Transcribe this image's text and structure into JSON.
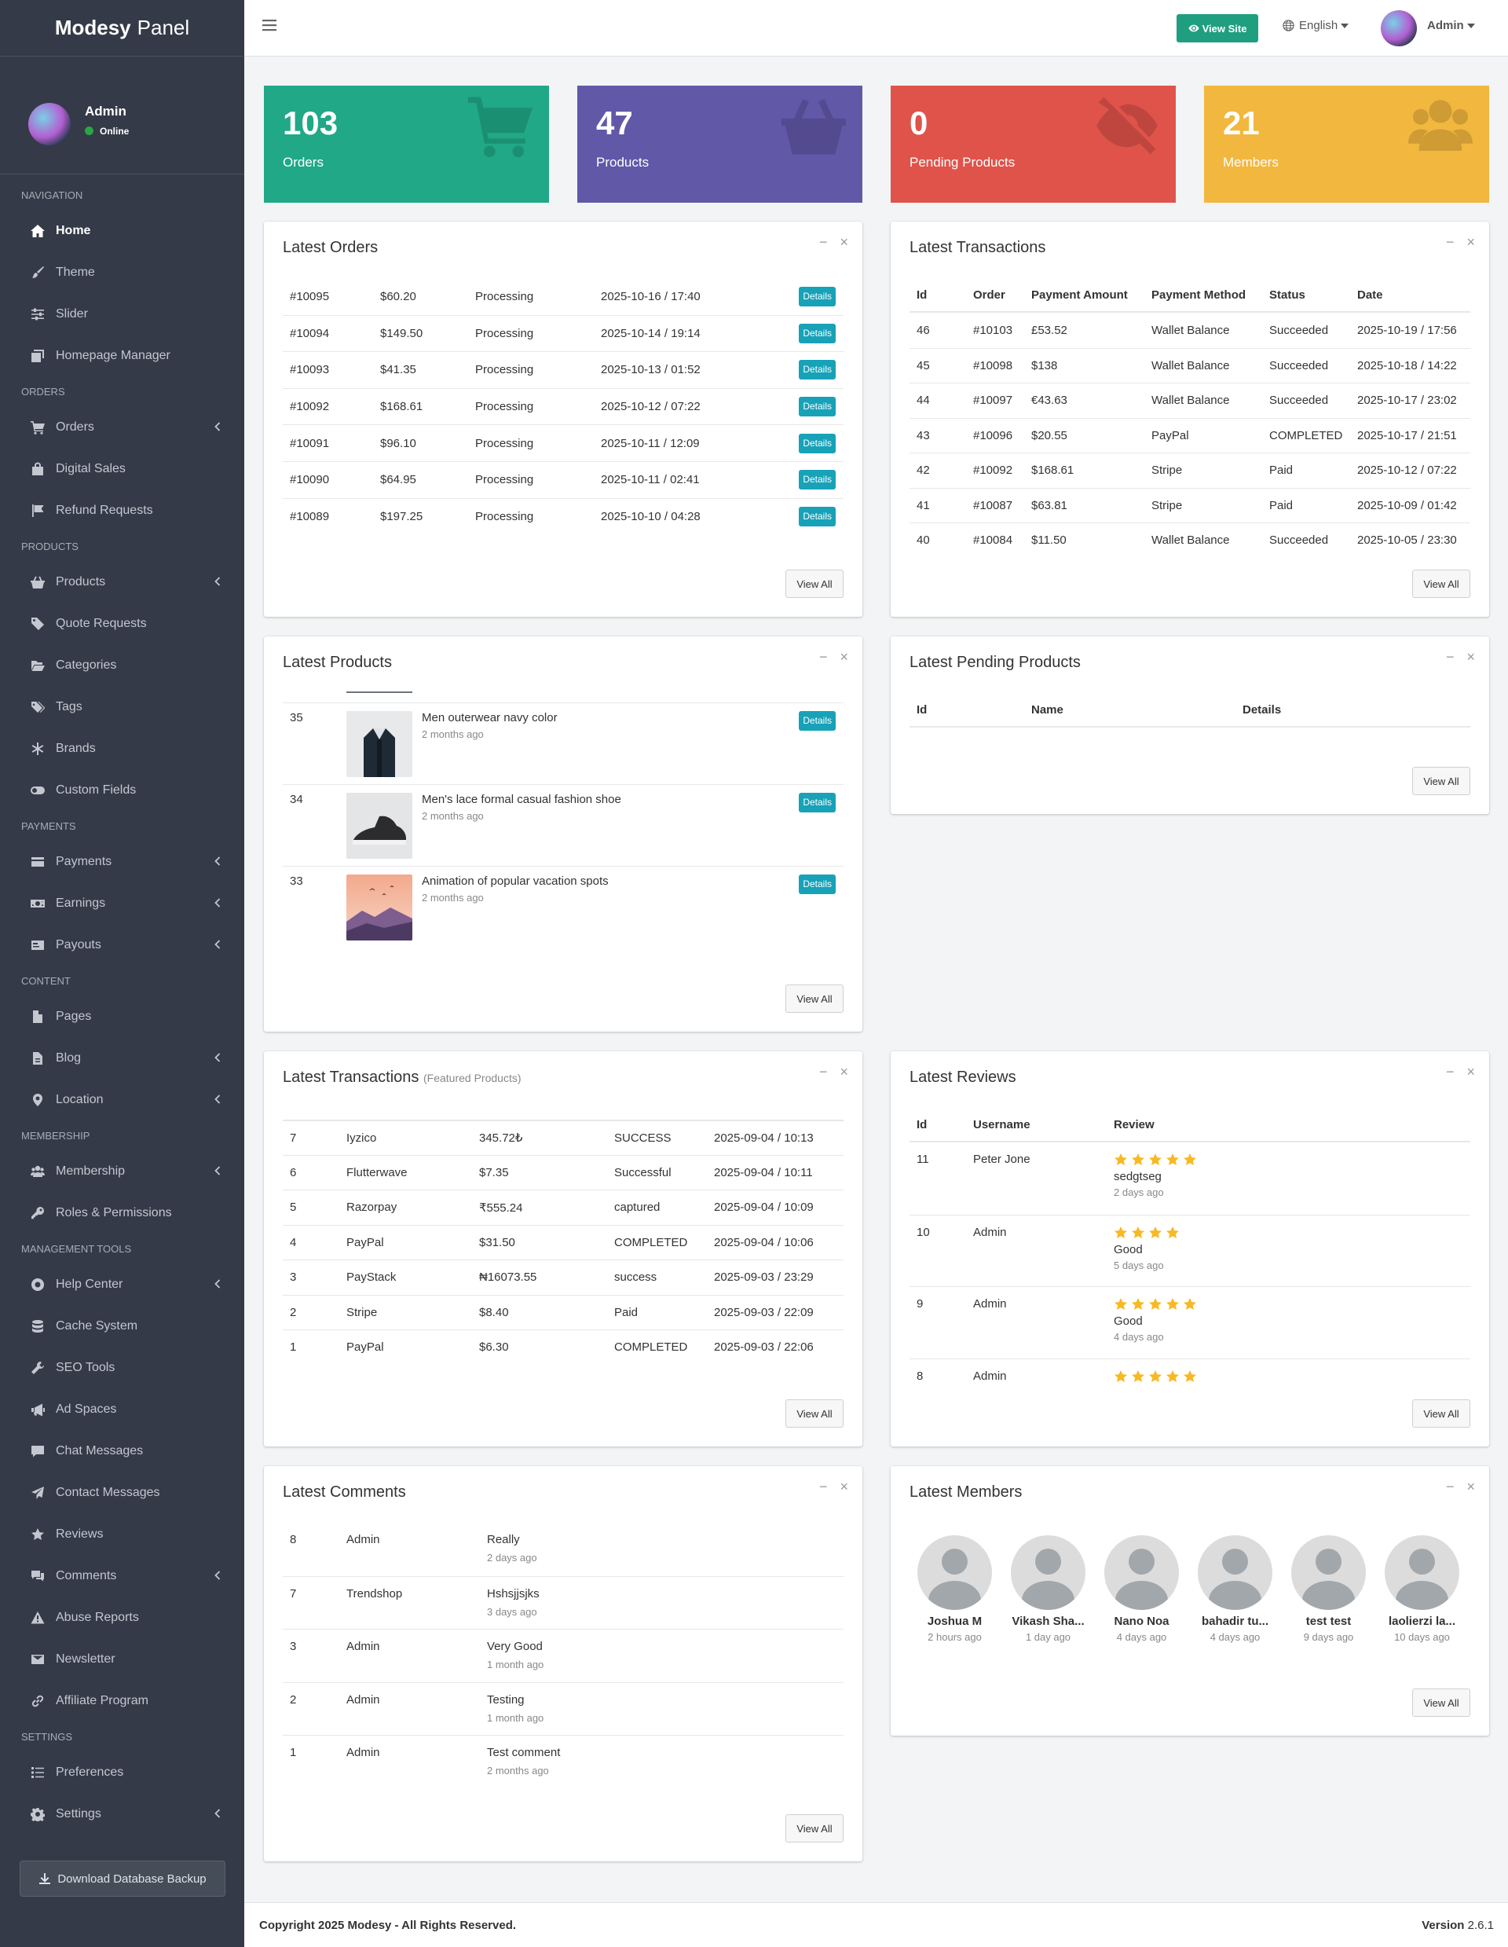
{
  "brand": {
    "bold": "Modesy",
    "light": "Panel"
  },
  "user": {
    "name": "Admin",
    "status": "Online"
  },
  "nav": [
    {
      "type": "header",
      "label": "Navigation"
    },
    {
      "type": "item",
      "label": "Home",
      "icon": "home-icon",
      "active": true
    },
    {
      "type": "item",
      "label": "Theme",
      "icon": "brush-icon"
    },
    {
      "type": "item",
      "label": "Slider",
      "icon": "sliders-icon"
    },
    {
      "type": "item",
      "label": "Homepage Manager",
      "icon": "layers-icon"
    },
    {
      "type": "header",
      "label": "Orders"
    },
    {
      "type": "item",
      "label": "Orders",
      "icon": "cart-icon",
      "chevron": true
    },
    {
      "type": "item",
      "label": "Digital Sales",
      "icon": "shopping-bag-icon"
    },
    {
      "type": "item",
      "label": "Refund Requests",
      "icon": "flag-icon"
    },
    {
      "type": "header",
      "label": "Products"
    },
    {
      "type": "item",
      "label": "Products",
      "icon": "basket-icon",
      "chevron": true
    },
    {
      "type": "item",
      "label": "Quote Requests",
      "icon": "tag-icon"
    },
    {
      "type": "item",
      "label": "Categories",
      "icon": "folder-open-icon"
    },
    {
      "type": "item",
      "label": "Tags",
      "icon": "tags-icon"
    },
    {
      "type": "item",
      "label": "Brands",
      "icon": "asterisk-icon"
    },
    {
      "type": "item",
      "label": "Custom Fields",
      "icon": "toggle-icon"
    },
    {
      "type": "header",
      "label": "Payments"
    },
    {
      "type": "item",
      "label": "Payments",
      "icon": "credit-card-icon",
      "chevron": true
    },
    {
      "type": "item",
      "label": "Earnings",
      "icon": "money-bill-icon",
      "chevron": true
    },
    {
      "type": "item",
      "label": "Payouts",
      "icon": "payout-card-icon",
      "chevron": true
    },
    {
      "type": "header",
      "label": "Content"
    },
    {
      "type": "item",
      "label": "Pages",
      "icon": "file-icon"
    },
    {
      "type": "item",
      "label": "Blog",
      "icon": "file-text-icon",
      "chevron": true
    },
    {
      "type": "item",
      "label": "Location",
      "icon": "map-marker-icon",
      "chevron": true
    },
    {
      "type": "header",
      "label": "Membership"
    },
    {
      "type": "item",
      "label": "Membership",
      "icon": "users-icon",
      "chevron": true
    },
    {
      "type": "item",
      "label": "Roles & Permissions",
      "icon": "key-icon"
    },
    {
      "type": "header",
      "label": "Management Tools"
    },
    {
      "type": "item",
      "label": "Help Center",
      "icon": "lifebuoy-icon",
      "chevron": true
    },
    {
      "type": "item",
      "label": "Cache System",
      "icon": "database-icon"
    },
    {
      "type": "item",
      "label": "SEO Tools",
      "icon": "wrench-icon"
    },
    {
      "type": "item",
      "label": "Ad Spaces",
      "icon": "megaphone-icon"
    },
    {
      "type": "item",
      "label": "Chat Messages",
      "icon": "chat-icon"
    },
    {
      "type": "item",
      "label": "Contact Messages",
      "icon": "paper-plane-icon"
    },
    {
      "type": "item",
      "label": "Reviews",
      "icon": "star-icon"
    },
    {
      "type": "item",
      "label": "Comments",
      "icon": "comments-icon",
      "chevron": true
    },
    {
      "type": "item",
      "label": "Abuse Reports",
      "icon": "warning-icon"
    },
    {
      "type": "item",
      "label": "Newsletter",
      "icon": "envelope-icon"
    },
    {
      "type": "item",
      "label": "Affiliate Program",
      "icon": "link-icon"
    },
    {
      "type": "header",
      "label": "Settings"
    },
    {
      "type": "item",
      "label": "Preferences",
      "icon": "list-icon"
    },
    {
      "type": "item",
      "label": "Settings",
      "icon": "gear-icon",
      "chevron": true
    }
  ],
  "download_backup": "Download Database Backup",
  "topbar": {
    "view_site": "View Site",
    "language": "English",
    "admin": "Admin"
  },
  "stats": [
    {
      "value": "103",
      "label": "Orders",
      "color": "#20a887",
      "icon": "cart-icon"
    },
    {
      "value": "47",
      "label": "Products",
      "color": "#6258a8",
      "icon": "basket-icon"
    },
    {
      "value": "0",
      "label": "Pending Products",
      "color": "#e0534a",
      "icon": "eye-slash-icon"
    },
    {
      "value": "21",
      "label": "Members",
      "color": "#f2b73e",
      "icon": "users-icon"
    }
  ],
  "common": {
    "view_all": "View All",
    "details": "Details"
  },
  "latest_orders": {
    "title": "Latest Orders",
    "rows": [
      [
        "#10095",
        "$60.20",
        "Processing",
        "2025-10-16 / 17:40"
      ],
      [
        "#10094",
        "$149.50",
        "Processing",
        "2025-10-14 / 19:14"
      ],
      [
        "#10093",
        "$41.35",
        "Processing",
        "2025-10-13 / 01:52"
      ],
      [
        "#10092",
        "$168.61",
        "Processing",
        "2025-10-12 / 07:22"
      ],
      [
        "#10091",
        "$96.10",
        "Processing",
        "2025-10-11 / 12:09"
      ],
      [
        "#10090",
        "$64.95",
        "Processing",
        "2025-10-11 / 02:41"
      ],
      [
        "#10089",
        "$197.25",
        "Processing",
        "2025-10-10 / 04:28"
      ]
    ]
  },
  "latest_transactions": {
    "title": "Latest Transactions",
    "headers": [
      "Id",
      "Order",
      "Payment Amount",
      "Payment Method",
      "Status",
      "Date"
    ],
    "rows": [
      [
        "46",
        "#10103",
        "£53.52",
        "Wallet Balance",
        "Succeeded",
        "2025-10-19 / 17:56"
      ],
      [
        "45",
        "#10098",
        "$138",
        "Wallet Balance",
        "Succeeded",
        "2025-10-18 / 14:22"
      ],
      [
        "44",
        "#10097",
        "€43.63",
        "Wallet Balance",
        "Succeeded",
        "2025-10-17 / 23:02"
      ],
      [
        "43",
        "#10096",
        "$20.55",
        "PayPal",
        "COMPLETED",
        "2025-10-17 / 21:51"
      ],
      [
        "42",
        "#10092",
        "$168.61",
        "Stripe",
        "Paid",
        "2025-10-12 / 07:22"
      ],
      [
        "41",
        "#10087",
        "$63.81",
        "Stripe",
        "Paid",
        "2025-10-09 / 01:42"
      ],
      [
        "40",
        "#10084",
        "$11.50",
        "Wallet Balance",
        "Succeeded",
        "2025-10-05 / 23:30"
      ]
    ]
  },
  "latest_products": {
    "title": "Latest Products",
    "rows": [
      {
        "id": "35",
        "name": "Men outerwear navy color",
        "time": "2 months ago"
      },
      {
        "id": "34",
        "name": "Men's lace formal casual fashion shoe",
        "time": "2 months ago"
      },
      {
        "id": "33",
        "name": "Animation of popular vacation spots",
        "time": "2 months ago"
      }
    ]
  },
  "latest_pending": {
    "title": "Latest Pending Products",
    "headers": [
      "Id",
      "Name",
      "Details"
    ]
  },
  "featured_transactions": {
    "title": "Latest Transactions",
    "subtitle": "(Featured Products)",
    "rows": [
      [
        "7",
        "Iyzico",
        "345.72₺",
        "SUCCESS",
        "2025-09-04 / 10:13"
      ],
      [
        "6",
        "Flutterwave",
        "$7.35",
        "Successful",
        "2025-09-04 / 10:11"
      ],
      [
        "5",
        "Razorpay",
        "₹555.24",
        "captured",
        "2025-09-04 / 10:09"
      ],
      [
        "4",
        "PayPal",
        "$31.50",
        "COMPLETED",
        "2025-09-04 / 10:06"
      ],
      [
        "3",
        "PayStack",
        "₦16073.55",
        "success",
        "2025-09-03 / 23:29"
      ],
      [
        "2",
        "Stripe",
        "$8.40",
        "Paid",
        "2025-09-03 / 22:09"
      ],
      [
        "1",
        "PayPal",
        "$6.30",
        "COMPLETED",
        "2025-09-03 / 22:06"
      ]
    ]
  },
  "latest_reviews": {
    "title": "Latest Reviews",
    "headers": [
      "Id",
      "Username",
      "Review"
    ],
    "rows": [
      {
        "id": "11",
        "user": "Peter Jone",
        "stars": 5,
        "text": "sedgtseg",
        "time": "2 days ago"
      },
      {
        "id": "10",
        "user": "Admin",
        "stars": 4,
        "text": "Good",
        "time": "5 days ago"
      },
      {
        "id": "9",
        "user": "Admin",
        "stars": 5,
        "text": "Good",
        "time": "4 days ago"
      },
      {
        "id": "8",
        "user": "Admin",
        "stars": 5,
        "text": "",
        "time": ""
      }
    ]
  },
  "latest_comments": {
    "title": "Latest Comments",
    "rows": [
      {
        "id": "8",
        "user": "Admin",
        "text": "Really",
        "time": "2 days ago"
      },
      {
        "id": "7",
        "user": "Trendshop",
        "text": "Hshsjjsjks",
        "time": "3 days ago"
      },
      {
        "id": "3",
        "user": "Admin",
        "text": "Very Good",
        "time": "1 month ago"
      },
      {
        "id": "2",
        "user": "Admin",
        "text": "Testing",
        "time": "1 month ago"
      },
      {
        "id": "1",
        "user": "Admin",
        "text": "Test comment",
        "time": "2 months ago"
      }
    ]
  },
  "latest_members": {
    "title": "Latest Members",
    "rows": [
      {
        "name": "Joshua M",
        "time": "2 hours ago"
      },
      {
        "name": "Vikash Sha...",
        "time": "1 day ago"
      },
      {
        "name": "Nano Noa",
        "time": "4 days ago"
      },
      {
        "name": "bahadir tu...",
        "time": "4 days ago"
      },
      {
        "name": "test test",
        "time": "9 days ago"
      },
      {
        "name": "laolierzi la...",
        "time": "10 days ago"
      }
    ]
  },
  "footer": {
    "copyright": "Copyright 2025 Modesy - All Rights Reserved.",
    "version_label": "Version",
    "version": "2.6.1"
  }
}
